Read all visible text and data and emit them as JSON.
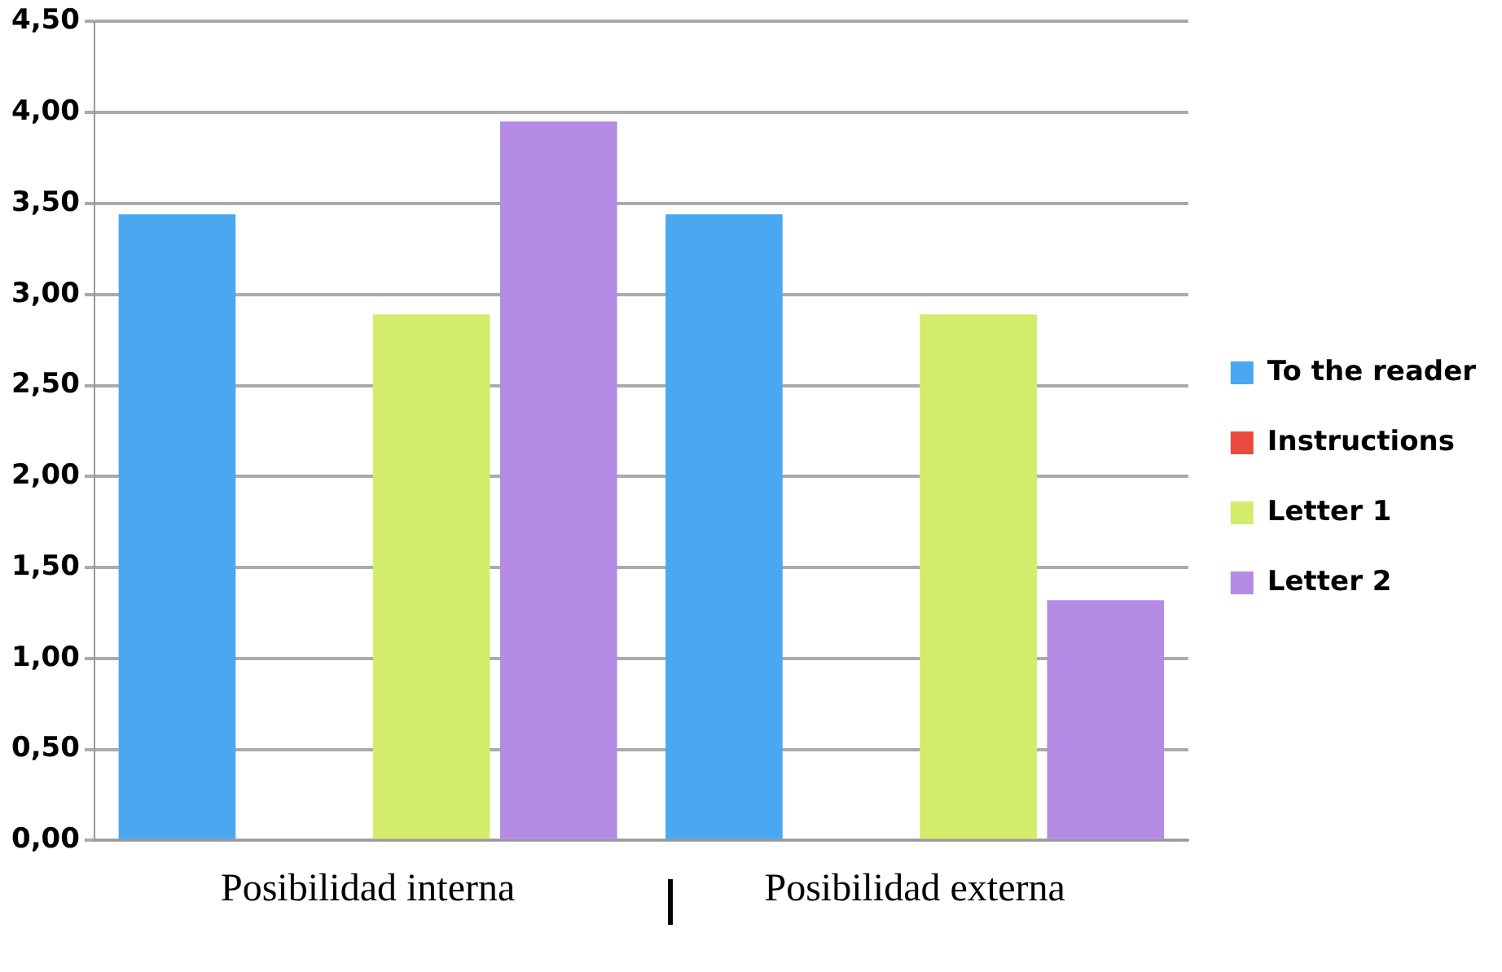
{
  "chart_data": {
    "type": "bar",
    "categories": [
      "Posibilidad interna",
      "Posibilidad externa"
    ],
    "series": [
      {
        "name": "To the reader",
        "color": "#4aa8f0",
        "values": [
          3.44,
          3.44
        ]
      },
      {
        "name": "Instructions",
        "color": "#e84a40",
        "values": [
          0,
          0
        ]
      },
      {
        "name": "Letter 1",
        "color": "#d4ec6c",
        "values": [
          2.89,
          2.89
        ]
      },
      {
        "name": "Letter 2",
        "color": "#b48ce6",
        "values": [
          3.95,
          1.32
        ]
      }
    ],
    "ylim": [
      0,
      4.5
    ],
    "yticks": [
      {
        "value": 0,
        "label": "0,00"
      },
      {
        "value": 0.5,
        "label": "0,50"
      },
      {
        "value": 1,
        "label": "1,00"
      },
      {
        "value": 1.5,
        "label": "1,50"
      },
      {
        "value": 2,
        "label": "2,00"
      },
      {
        "value": 2.5,
        "label": "2,50"
      },
      {
        "value": 3,
        "label": "3,00"
      },
      {
        "value": 3.5,
        "label": "3,50"
      },
      {
        "value": 4,
        "label": "4,00"
      },
      {
        "value": 4.5,
        "label": "4,50"
      }
    ],
    "grid": "y",
    "legend": "right"
  }
}
